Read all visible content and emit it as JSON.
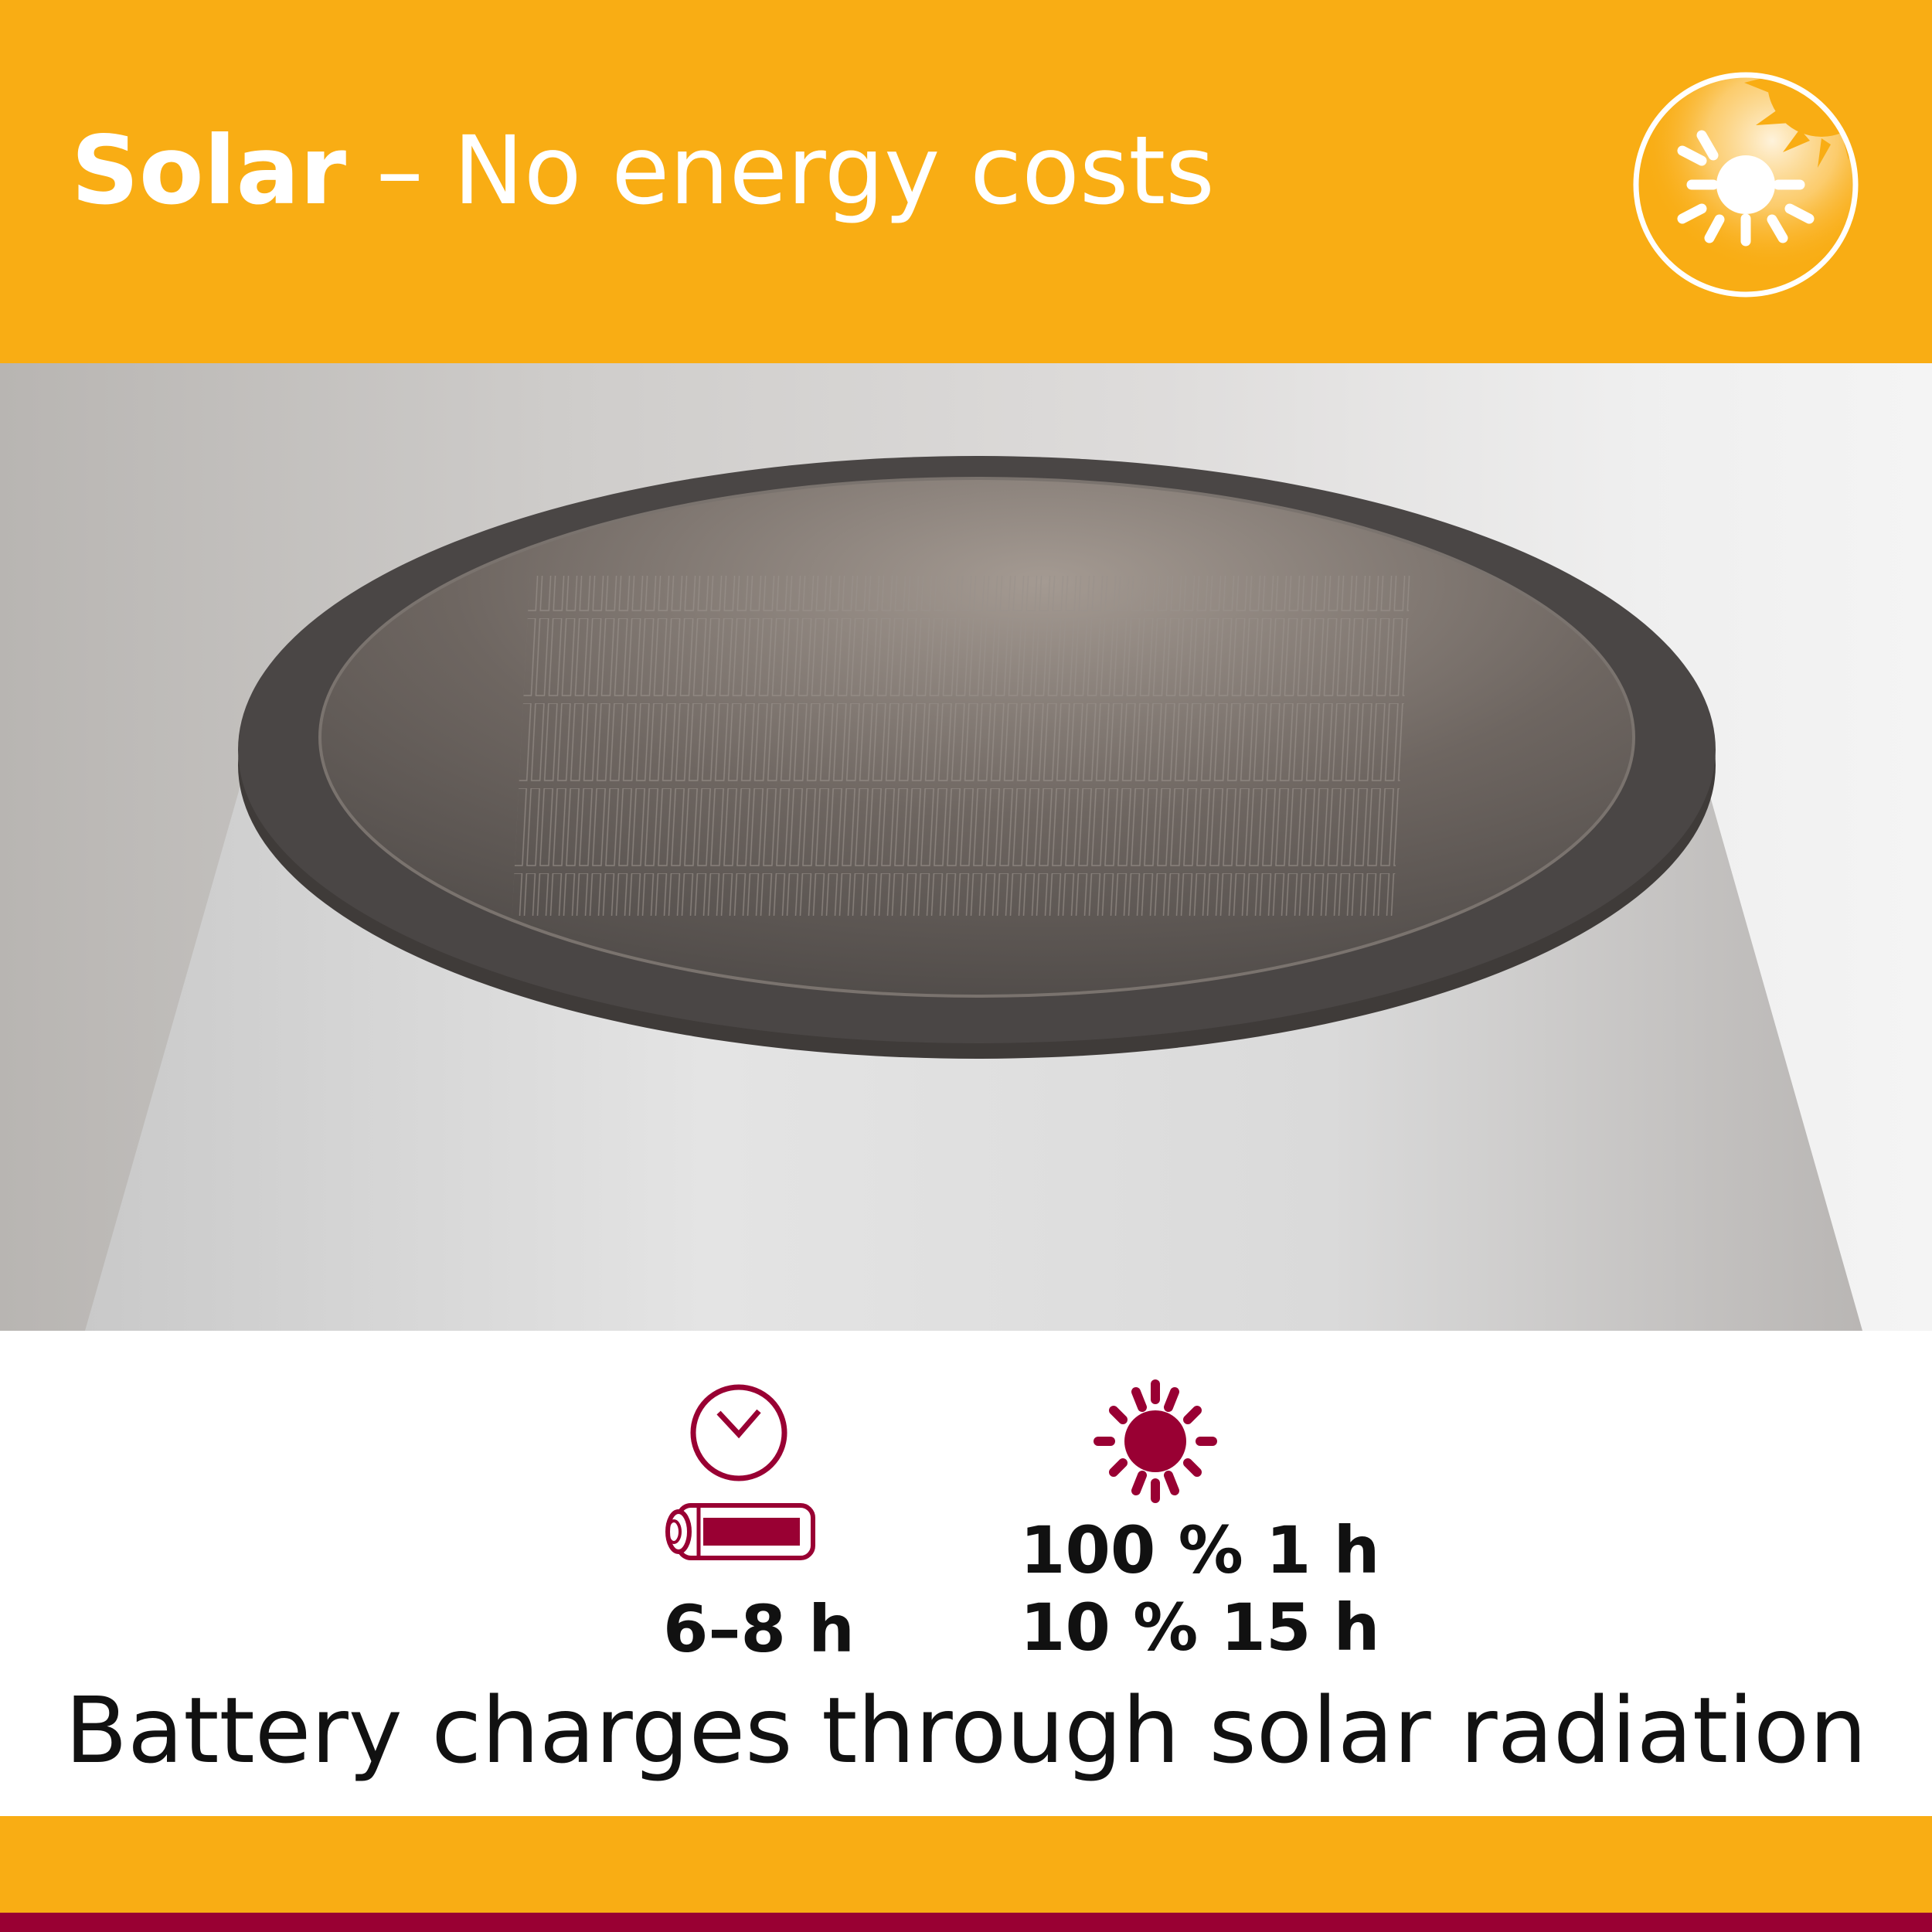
{
  "header": {
    "title_bold": "Solar",
    "title_rest": " – No energy costs",
    "badge_icon": "solar-sun-icon"
  },
  "specs": {
    "battery": {
      "icons": [
        "clock-icon",
        "battery-icon"
      ],
      "duration": "6–8 h"
    },
    "charging": {
      "icon": "sun-icon",
      "lines": [
        "100 % 1 h",
        "10 % 15 h"
      ]
    }
  },
  "caption": "Battery charges through solar radiation",
  "colors": {
    "brand_orange": "#F9AD14",
    "accent_red": "#990033",
    "text": "#111111"
  }
}
